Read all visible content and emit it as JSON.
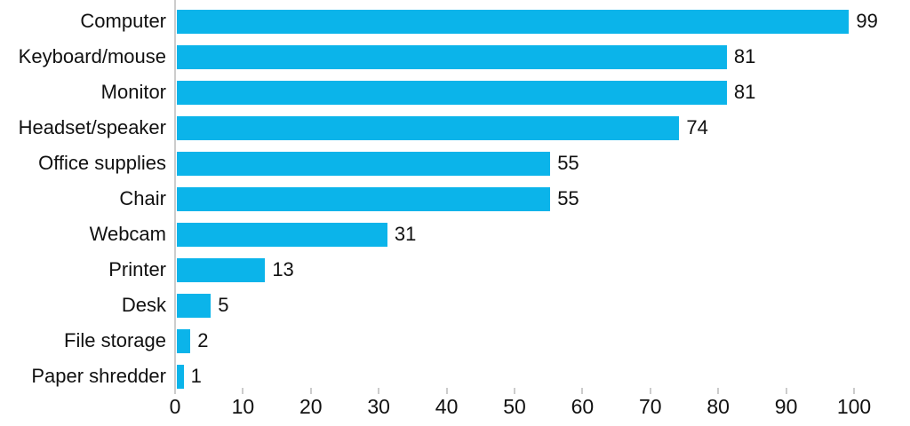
{
  "chart_data": {
    "type": "bar",
    "orientation": "horizontal",
    "title": "",
    "xlabel": "",
    "ylabel": "",
    "categories": [
      "Computer",
      "Keyboard/mouse",
      "Monitor",
      "Headset/speaker",
      "Office supplies",
      "Chair",
      "Webcam",
      "Printer",
      "Desk",
      "File storage",
      "Paper shredder"
    ],
    "values": [
      99,
      81,
      81,
      74,
      55,
      55,
      31,
      13,
      5,
      2,
      1
    ],
    "value_labels": [
      "99",
      "81",
      "81",
      "74",
      "55",
      "55",
      "31",
      "13",
      "5",
      "2",
      "1"
    ],
    "xlim": [
      0,
      100
    ],
    "xticks": [
      0,
      10,
      20,
      30,
      40,
      50,
      60,
      70,
      80,
      90,
      100
    ],
    "grid": false,
    "legend": false,
    "colors": {
      "bar": "#0bb4ea",
      "axis": "#cccccc",
      "text": "#111111",
      "background": "#ffffff"
    }
  }
}
